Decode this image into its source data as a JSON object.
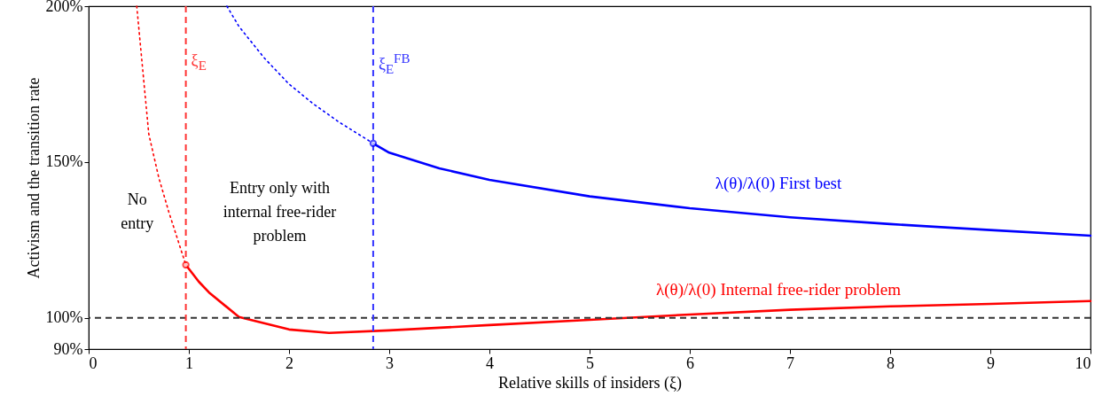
{
  "chart_data": {
    "type": "line",
    "xlabel": "Relative skills of insiders (ξ)",
    "ylabel": "Activism and the transition rate",
    "xlim": [
      0,
      10
    ],
    "xticks": [
      0,
      1,
      2,
      3,
      4,
      5,
      6,
      7,
      8,
      9,
      10
    ],
    "ylim": [
      90,
      200
    ],
    "yticks": [
      {
        "value": 90,
        "label": "90%"
      },
      {
        "value": 100,
        "label": "100%"
      },
      {
        "value": 150,
        "label": "150%"
      },
      {
        "value": 200,
        "label": "200%"
      }
    ],
    "grid": false,
    "series": [
      {
        "line_style": "dotted",
        "color": "#ff0000",
        "x": [
          0.48,
          0.6,
          0.7,
          0.8,
          0.9,
          0.97
        ],
        "values": [
          200,
          159,
          145,
          134,
          124,
          117
        ]
      },
      {
        "line_style": "solid",
        "name": "λ(θ)/λ(0) Internal free-rider problem",
        "color": "#ff0000",
        "x": [
          0.97,
          1.1,
          1.2,
          1.5,
          2,
          2.4,
          3,
          4,
          5,
          6,
          7,
          8,
          9,
          10
        ],
        "values": [
          117,
          111.6,
          108.2,
          100.3,
          96.3,
          95.2,
          96,
          97.7,
          99.4,
          101.1,
          102.6,
          103.7,
          104.5,
          105.4
        ]
      },
      {
        "line_style": "dotted",
        "color": "#0000ff",
        "x": [
          1.38,
          1.5,
          1.75,
          2,
          2.25,
          2.5,
          2.84
        ],
        "values": [
          200,
          193.5,
          183.5,
          175,
          168.5,
          162.8,
          156
        ]
      },
      {
        "line_style": "solid",
        "name": "λ(θ)/λ(0) First best",
        "color": "#0000ff",
        "x": [
          2.84,
          3,
          3.5,
          4,
          5,
          6,
          7,
          8,
          9,
          10
        ],
        "values": [
          156,
          153,
          148,
          144.3,
          139,
          135.2,
          132.3,
          130.1,
          128.2,
          126.4
        ]
      },
      {
        "type": "scatter",
        "marker": "circle",
        "color": "#ff0000",
        "x": [
          0.97
        ],
        "values": [
          117
        ]
      },
      {
        "type": "scatter",
        "marker": "circle",
        "color": "#0000ff",
        "x": [
          2.84
        ],
        "values": [
          156
        ]
      }
    ],
    "ref_lines": [
      {
        "axis": "y",
        "value": 100,
        "color": "#333333",
        "line_style": "dashed"
      },
      {
        "axis": "x",
        "value": 0.97,
        "color": "#ff3333",
        "line_style": "dashed",
        "label": "ξ$_{E}$"
      },
      {
        "axis": "x",
        "value": 2.84,
        "color": "#3333ff",
        "line_style": "dashed",
        "label": "ξ$_{E}$$^{FB}$"
      }
    ],
    "annotations": [
      "No\nentry",
      "Entry only with\ninternal free-rider\nproblem"
    ]
  }
}
